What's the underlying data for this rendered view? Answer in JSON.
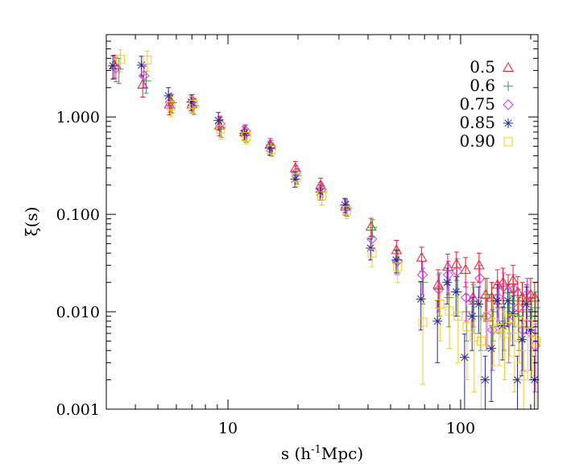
{
  "chart_data": {
    "type": "scatter",
    "xlabel_main": "s (h",
    "xlabel_sup": "-1",
    "xlabel_tail": "Mpc)",
    "ylabel": "ξ(s)",
    "xscale": "log",
    "yscale": "log",
    "xlim": [
      3,
      215
    ],
    "ylim": [
      0.001,
      7.0
    ],
    "x_ticks": [
      {
        "value": 10,
        "label": "10"
      },
      {
        "value": 100,
        "label": "100"
      }
    ],
    "y_ticks": [
      {
        "value": 0.001,
        "label": "0.001"
      },
      {
        "value": 0.01,
        "label": "0.010"
      },
      {
        "value": 0.1,
        "label": "0.100"
      },
      {
        "value": 1,
        "label": "1.000"
      }
    ],
    "grid": false,
    "legend_position": "top-right",
    "series": [
      {
        "name": "0.5",
        "marker": "triangle",
        "color": "#e8202a",
        "points": [
          [
            3.25,
            3.4,
            0.9
          ],
          [
            4.3,
            2.15,
            0.55
          ],
          [
            5.6,
            1.35,
            0.3
          ],
          [
            7.0,
            1.35,
            0.25
          ],
          [
            9.2,
            0.82,
            0.18
          ],
          [
            11.8,
            0.7,
            0.12
          ],
          [
            15.2,
            0.52,
            0.08
          ],
          [
            19.5,
            0.3,
            0.05
          ],
          [
            25.0,
            0.2,
            0.035
          ],
          [
            32.0,
            0.12,
            0.022
          ],
          [
            41.2,
            0.075,
            0.016
          ],
          [
            53.0,
            0.043,
            0.011
          ],
          [
            68.0,
            0.036,
            0.01
          ],
          [
            80.0,
            0.019,
            0.008
          ],
          [
            88.0,
            0.029,
            0.01
          ],
          [
            96.0,
            0.031,
            0.01
          ],
          [
            105.0,
            0.027,
            0.009
          ],
          [
            113.0,
            0.014,
            0.006
          ],
          [
            120.0,
            0.03,
            0.01
          ],
          [
            128.0,
            0.015,
            0.007
          ],
          [
            136.0,
            0.014,
            0.006
          ],
          [
            144.0,
            0.019,
            0.008
          ],
          [
            152.0,
            0.02,
            0.008
          ],
          [
            160.0,
            0.017,
            0.007
          ],
          [
            168.0,
            0.021,
            0.009
          ],
          [
            176.0,
            0.016,
            0.007
          ],
          [
            184.0,
            0.014,
            0.006
          ],
          [
            192.0,
            0.013,
            0.006
          ],
          [
            200.0,
            0.015,
            0.007
          ],
          [
            208.0,
            0.014,
            0.006
          ]
        ]
      },
      {
        "name": "0.6",
        "marker": "plus",
        "color": "#3c9a3c",
        "points": [
          [
            3.4,
            3.1,
            0.9
          ],
          [
            4.45,
            2.35,
            0.6
          ],
          [
            5.75,
            1.4,
            0.3
          ],
          [
            7.15,
            1.3,
            0.24
          ],
          [
            9.35,
            0.78,
            0.16
          ],
          [
            12.0,
            0.65,
            0.1
          ],
          [
            15.4,
            0.47,
            0.07
          ],
          [
            19.8,
            0.25,
            0.045
          ],
          [
            25.4,
            0.17,
            0.03
          ],
          [
            32.5,
            0.115,
            0.02
          ],
          [
            41.8,
            0.073,
            0.015
          ],
          [
            53.8,
            0.034,
            0.009
          ],
          [
            69.0,
            0.02,
            0.008
          ],
          [
            81.0,
            0.017,
            0.008
          ],
          [
            89.0,
            0.014,
            0.007
          ],
          [
            97.0,
            0.016,
            0.007
          ],
          [
            106.0,
            0.01,
            0.005
          ],
          [
            114.0,
            0.012,
            0.006
          ],
          [
            122.0,
            0.009,
            0.005
          ],
          [
            130.0,
            0.015,
            0.007
          ],
          [
            138.0,
            0.01,
            0.005
          ],
          [
            146.0,
            0.012,
            0.006
          ],
          [
            154.0,
            0.008,
            0.004
          ],
          [
            162.0,
            0.011,
            0.005
          ],
          [
            170.0,
            0.013,
            0.006
          ],
          [
            178.0,
            0.009,
            0.005
          ],
          [
            186.0,
            0.01,
            0.005
          ],
          [
            194.0,
            0.012,
            0.006
          ],
          [
            202.0,
            0.009,
            0.005
          ],
          [
            210.0,
            0.011,
            0.005
          ]
        ]
      },
      {
        "name": "0.75",
        "marker": "diamond",
        "color": "#d63ae0",
        "points": [
          [
            3.3,
            3.2,
            0.9
          ],
          [
            4.35,
            2.65,
            0.65
          ],
          [
            5.65,
            1.42,
            0.3
          ],
          [
            7.05,
            1.45,
            0.25
          ],
          [
            9.25,
            0.85,
            0.17
          ],
          [
            11.9,
            0.72,
            0.11
          ],
          [
            15.3,
            0.5,
            0.075
          ],
          [
            19.6,
            0.27,
            0.045
          ],
          [
            25.2,
            0.18,
            0.03
          ],
          [
            32.2,
            0.118,
            0.02
          ],
          [
            41.5,
            0.056,
            0.013
          ],
          [
            53.4,
            0.033,
            0.009
          ],
          [
            68.5,
            0.024,
            0.009
          ],
          [
            80.5,
            0.017,
            0.007
          ],
          [
            88.5,
            0.024,
            0.009
          ],
          [
            96.5,
            0.026,
            0.009
          ],
          [
            105.5,
            0.014,
            0.006
          ],
          [
            113.5,
            0.013,
            0.006
          ],
          [
            121.0,
            0.022,
            0.008
          ],
          [
            129.0,
            0.009,
            0.005
          ],
          [
            137.0,
            0.0065,
            0.004
          ],
          [
            145.0,
            0.014,
            0.006
          ],
          [
            153.0,
            0.018,
            0.007
          ],
          [
            161.0,
            0.008,
            0.005
          ],
          [
            169.0,
            0.017,
            0.007
          ],
          [
            177.0,
            0.011,
            0.006
          ],
          [
            185.0,
            0.0065,
            0.004
          ],
          [
            193.0,
            0.015,
            0.007
          ],
          [
            201.0,
            0.006,
            0.004
          ],
          [
            209.0,
            0.0045,
            0.003
          ]
        ]
      },
      {
        "name": "0.85",
        "marker": "asterisk",
        "color": "#2a2a8c",
        "points": [
          [
            3.2,
            3.35,
            0.9
          ],
          [
            4.25,
            3.4,
            0.8
          ],
          [
            5.55,
            1.65,
            0.35
          ],
          [
            6.95,
            1.42,
            0.26
          ],
          [
            9.1,
            0.92,
            0.19
          ],
          [
            11.75,
            0.68,
            0.11
          ],
          [
            15.1,
            0.48,
            0.075
          ],
          [
            19.4,
            0.23,
            0.04
          ],
          [
            24.9,
            0.17,
            0.03
          ],
          [
            31.8,
            0.125,
            0.021
          ],
          [
            41.0,
            0.045,
            0.011
          ],
          [
            52.8,
            0.034,
            0.009
          ],
          [
            67.5,
            0.0135,
            0.007
          ],
          [
            79.5,
            0.008,
            0.005
          ],
          [
            87.5,
            0.02,
            0.008
          ],
          [
            95.5,
            0.016,
            0.007
          ],
          [
            104.0,
            0.0034,
            0.0025
          ],
          [
            112.0,
            0.009,
            0.005
          ],
          [
            119.5,
            0.012,
            0.006
          ],
          [
            127.5,
            0.002,
            0.0015
          ],
          [
            135.5,
            0.0042,
            0.003
          ],
          [
            143.5,
            0.013,
            0.006
          ],
          [
            151.5,
            0.0072,
            0.004
          ],
          [
            159.5,
            0.013,
            0.006
          ],
          [
            167.5,
            0.0095,
            0.005
          ],
          [
            175.5,
            0.002,
            0.0015
          ],
          [
            183.5,
            0.0052,
            0.003
          ],
          [
            191.5,
            0.012,
            0.006
          ],
          [
            199.5,
            0.0065,
            0.004
          ],
          [
            207.5,
            0.002,
            0.0015
          ]
        ]
      },
      {
        "name": "0.90",
        "marker": "square",
        "color": "#f2cc2a",
        "points": [
          [
            3.45,
            3.9,
            1.0
          ],
          [
            4.5,
            3.85,
            0.9
          ],
          [
            5.7,
            1.3,
            0.3
          ],
          [
            7.1,
            1.35,
            0.25
          ],
          [
            9.3,
            0.75,
            0.16
          ],
          [
            11.95,
            0.63,
            0.1
          ],
          [
            15.35,
            0.46,
            0.07
          ],
          [
            19.7,
            0.24,
            0.045
          ],
          [
            25.3,
            0.155,
            0.03
          ],
          [
            32.4,
            0.11,
            0.02
          ],
          [
            41.6,
            0.04,
            0.011
          ],
          [
            53.6,
            0.029,
            0.009
          ],
          [
            68.8,
            0.0078,
            0.006
          ],
          [
            81.5,
            0.012,
            0.007
          ],
          [
            89.5,
            0.0102,
            0.006
          ],
          [
            97.5,
            0.009,
            0.006
          ],
          [
            106.5,
            0.007,
            0.005
          ],
          [
            114.5,
            0.0055,
            0.004
          ],
          [
            122.5,
            0.005,
            0.004
          ],
          [
            130.5,
            0.009,
            0.005
          ],
          [
            138.5,
            0.0078,
            0.005
          ],
          [
            146.5,
            0.0068,
            0.004
          ],
          [
            154.5,
            0.006,
            0.004
          ],
          [
            162.5,
            0.0085,
            0.005
          ],
          [
            170.5,
            0.0055,
            0.004
          ],
          [
            178.5,
            0.008,
            0.005
          ],
          [
            186.5,
            0.0022,
            0.0018
          ],
          [
            194.5,
            0.0075,
            0.005
          ],
          [
            202.5,
            0.0062,
            0.004
          ],
          [
            210.5,
            0.005,
            0.004
          ]
        ]
      }
    ]
  }
}
